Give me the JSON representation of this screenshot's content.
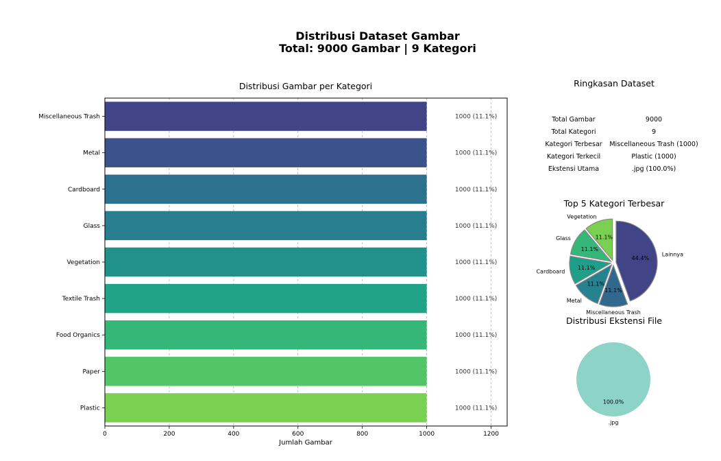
{
  "header": {
    "title_line1": "Distribusi Dataset Gambar",
    "title_line2": "Total: 9000 Gambar | 9 Kategori"
  },
  "chart_data": [
    {
      "type": "bar",
      "orientation": "horizontal",
      "title": "Distribusi Gambar per Kategori",
      "xlabel": "Jumlah Gambar",
      "ylabel": "",
      "xlim": [
        0,
        1250
      ],
      "xticks": [
        "0",
        "200",
        "400",
        "600",
        "800",
        "1000",
        "1200"
      ],
      "grid": "vertical dashed",
      "categories": [
        "Miscellaneous Trash",
        "Metal",
        "Cardboard",
        "Glass",
        "Vegetation",
        "Textile Trash",
        "Food Organics",
        "Paper",
        "Plastic"
      ],
      "values": [
        1000,
        1000,
        1000,
        1000,
        1000,
        1000,
        1000,
        1000,
        1000
      ],
      "value_labels": [
        "1000 (11.1%)",
        "1000 (11.1%)",
        "1000 (11.1%)",
        "1000 (11.1%)",
        "1000 (11.1%)",
        "1000 (11.1%)",
        "1000 (11.1%)",
        "1000 (11.1%)",
        "1000 (11.1%)"
      ],
      "colors": [
        "#414487",
        "#3b528b",
        "#2c728e",
        "#287d8e",
        "#21918c",
        "#20a386",
        "#35b779",
        "#52c569",
        "#7ad151"
      ]
    },
    {
      "type": "table",
      "title": "Ringkasan Dataset",
      "rows": [
        [
          "Total Gambar",
          "9000"
        ],
        [
          "Total Kategori",
          "9"
        ],
        [
          "Kategori Terbesar",
          "Miscellaneous Trash (1000)"
        ],
        [
          "Kategori Terkecil",
          "Plastic (1000)"
        ],
        [
          "Ekstensi Utama",
          ".jpg (100.0%)"
        ]
      ]
    },
    {
      "type": "pie",
      "title": "Top 5 Kategori Terbesar",
      "labels": [
        "Lainnya",
        "Miscellaneous Trash",
        "Metal",
        "Cardboard",
        "Glass",
        "Vegetation"
      ],
      "values": [
        44.4,
        11.1,
        11.1,
        11.1,
        11.1,
        11.1
      ],
      "pct_labels": [
        "44.4%",
        "11.1%",
        "11.1%",
        "11.1%",
        "11.1%",
        "11.1%"
      ],
      "colors": [
        "#414487",
        "#31688e",
        "#26828e",
        "#1f9e89",
        "#35b779",
        "#7ad151"
      ],
      "exploded": true
    },
    {
      "type": "pie",
      "title": "Distribusi Ekstensi File",
      "labels": [
        ".jpg"
      ],
      "values": [
        100.0
      ],
      "pct_labels": [
        "100.0%"
      ],
      "colors": [
        "#8dd3c7"
      ]
    }
  ]
}
